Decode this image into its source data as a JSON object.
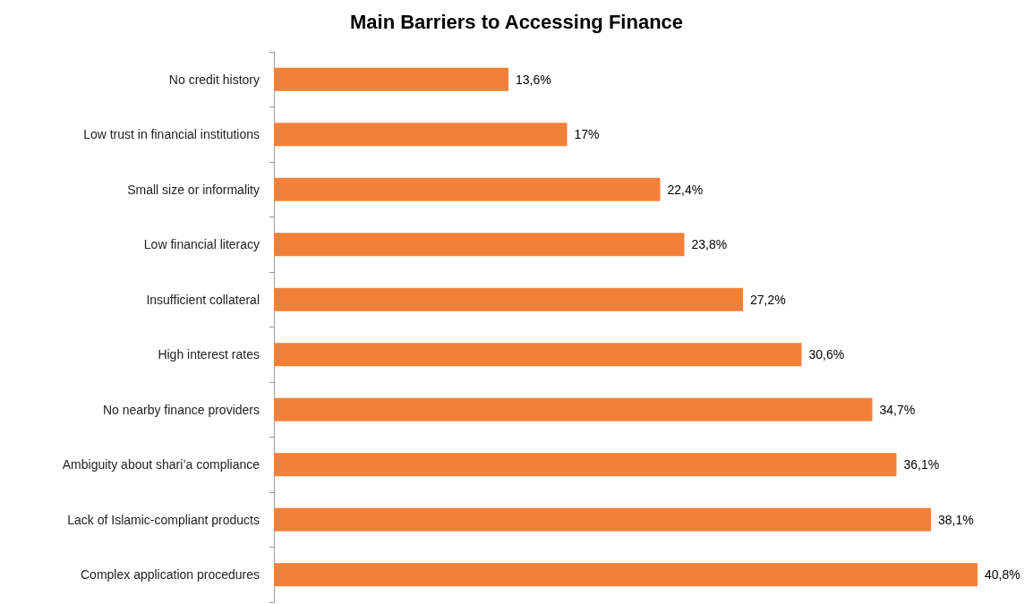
{
  "chart_data": {
    "type": "bar",
    "orientation": "horizontal",
    "title": "Main Barriers to Accessing Finance",
    "categories": [
      "No credit history",
      "Low trust in financial institutions",
      "Small size or informality",
      "Low financial literacy",
      "Insufficient collateral",
      "High interest rates",
      "No nearby finance providers",
      "Ambiguity about shari’a compliance",
      "Lack of Islamic-compliant products",
      "Complex application procedures"
    ],
    "values": [
      13.6,
      17,
      22.4,
      23.8,
      27.2,
      30.6,
      34.7,
      36.1,
      38.1,
      40.8
    ],
    "value_labels": [
      "13,6%",
      "17%",
      "22,4%",
      "23,8%",
      "27,2%",
      "30,6%",
      "34,7%",
      "36,1%",
      "38,1%",
      "40,8%"
    ],
    "color": "#f48038"
  }
}
